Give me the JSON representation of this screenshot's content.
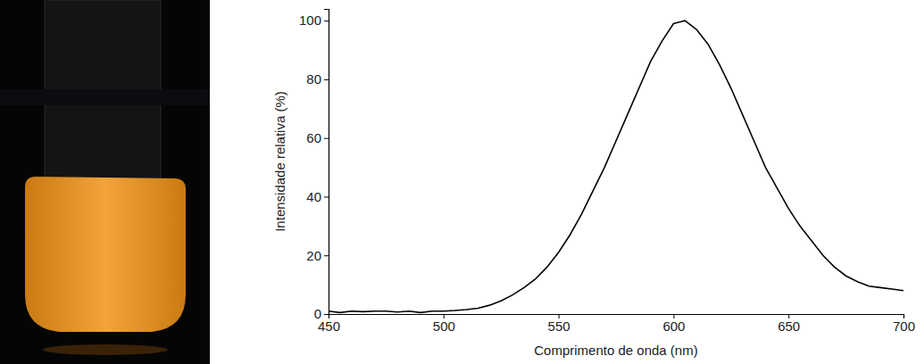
{
  "chart_data": {
    "type": "line",
    "x_label": "Comprimento de onda (nm)",
    "y_label": "Intensidade relativa (%)",
    "x": [
      450,
      455,
      460,
      465,
      470,
      475,
      480,
      485,
      490,
      495,
      500,
      505,
      510,
      515,
      520,
      525,
      530,
      535,
      540,
      545,
      550,
      555,
      560,
      565,
      570,
      575,
      580,
      585,
      590,
      595,
      600,
      605,
      610,
      615,
      620,
      625,
      630,
      635,
      640,
      645,
      650,
      655,
      660,
      665,
      670,
      675,
      680,
      685,
      690,
      695,
      700
    ],
    "values": [
      1,
      0.5,
      1,
      0.8,
      1,
      1,
      0.7,
      1,
      0.5,
      1,
      1,
      1.2,
      1.5,
      2,
      3,
      4.5,
      6.5,
      9,
      12,
      16,
      21,
      27,
      34,
      42,
      50,
      59,
      68,
      77,
      86,
      93,
      99,
      100,
      97,
      92,
      85,
      77,
      68,
      59,
      50,
      43,
      36,
      30,
      25,
      20,
      16,
      13,
      11,
      9.5,
      9,
      8.5,
      8
    ],
    "color": "#000000",
    "xlim": [
      450,
      700
    ],
    "xticks": [
      450,
      500,
      550,
      600,
      650,
      700
    ],
    "ylim": [
      0,
      104
    ],
    "yticks": [
      0,
      20,
      40,
      60,
      80,
      100
    ],
    "grid": false
  }
}
